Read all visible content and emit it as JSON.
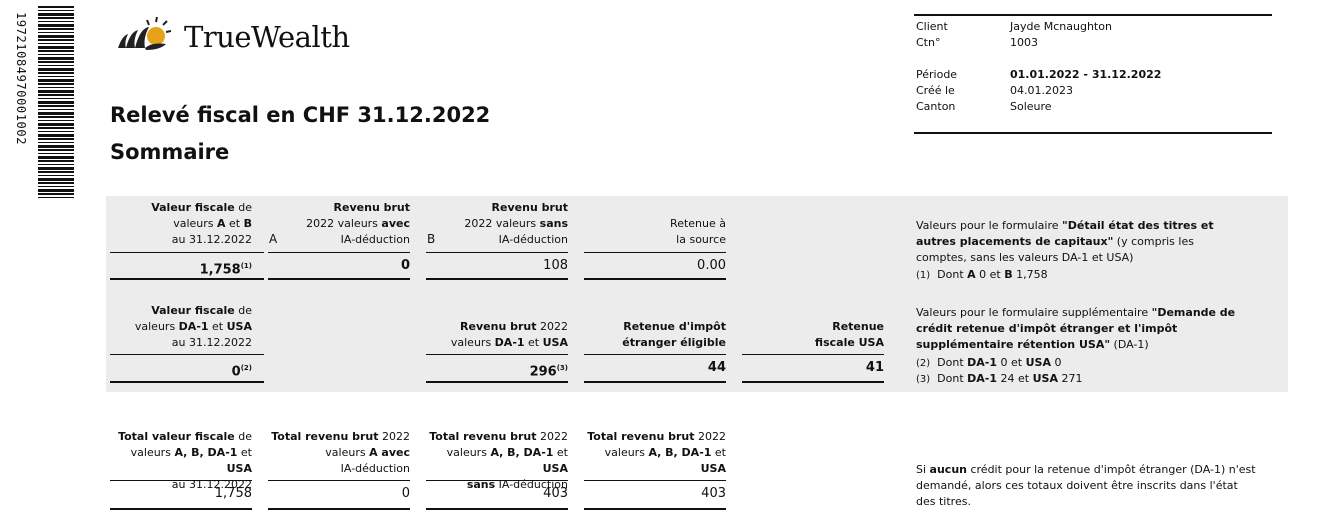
{
  "barcode": {
    "number": "19721084970001002"
  },
  "brand": {
    "name": "TrueWealth"
  },
  "doc": {
    "title": "Relevé fiscal en CHF 31.12.2022",
    "subtitle": "Sommaire"
  },
  "info": {
    "client_label": "Client",
    "client_value": "Jayde Mcnaughton",
    "ctn_label": "Ctn°",
    "ctn_value": "1003",
    "periode_label": "Période",
    "periode_value": "01.01.2022 - 31.12.2022",
    "cree_label": "Créé le",
    "cree_value": "04.01.2023",
    "canton_label": "Canton",
    "canton_value": "Soleure"
  },
  "row1": {
    "h1a": "Valeur fiscale",
    "h1b": " de",
    "h1c": "valeurs ",
    "h1d": "A",
    "h1e": " et ",
    "h1f": "B",
    "h1g": "au 31.12.2022",
    "letter_a": "A",
    "h2a": "Revenu brut",
    "h2b": "2022 valeurs ",
    "h2c": "avec",
    "h2d": "IA-déduction",
    "letter_b": "B",
    "h3a": "Revenu brut",
    "h3b": "2022 valeurs ",
    "h3c": "sans",
    "h3d": "IA-déduction",
    "h4a": "Retenue à",
    "h4b": "la source",
    "v1": "1,758",
    "v1_sup": "(1)",
    "v2": "0",
    "v3": "108",
    "v4": "0.00",
    "note_a": "Valeurs pour le formulaire ",
    "note_b": "\"Détail état des titres et autres placements de capitaux\"",
    "note_c": " (y compris les comptes, sans les valeurs DA-1 et USA)",
    "fn1_mark": "(1)",
    "fn1_a": "Dont ",
    "fn1_b": "A",
    "fn1_c": " 0 et ",
    "fn1_d": "B",
    "fn1_e": " 1,758"
  },
  "row2": {
    "h1a": "Valeur fiscale",
    "h1b": " de",
    "h1c": "valeurs ",
    "h1d": "DA-1",
    "h1e": " et ",
    "h1f": "USA",
    "h1g": "au 31.12.2022",
    "h3a": "Revenu brut",
    "h3b": " 2022",
    "h3c": "valeurs ",
    "h3d": "DA-1",
    "h3e": " et ",
    "h3f": "USA",
    "h4a": "Retenue d'impôt",
    "h4b": "étranger éligible",
    "h5a": "Retenue",
    "h5b": "fiscale USA",
    "v1": "0",
    "v1_sup": "(2)",
    "v3": "296",
    "v3_sup": "(3)",
    "v4": "44",
    "v5": "41",
    "note_a": "Valeurs pour le formulaire supplémentaire ",
    "note_b": "\"Demande de crédit retenue d'impôt étranger et l'impôt supplémentaire rétention USA\"",
    "note_c": " (DA-1)",
    "fn2_mark": "(2)",
    "fn2_a": "Dont ",
    "fn2_b": "DA-1",
    "fn2_c": " 0 et ",
    "fn2_d": "USA",
    "fn2_e": " 0",
    "fn3_mark": "(3)",
    "fn3_a": "Dont ",
    "fn3_b": "DA-1",
    "fn3_c": " 24 et ",
    "fn3_d": "USA",
    "fn3_e": " 271"
  },
  "row3": {
    "h1a": "Total valeur fiscale",
    "h1b": " de",
    "h1c": "valeurs ",
    "h1d": "A, B, DA-1",
    "h1e": " et ",
    "h1f": "USA",
    "h1g": "au 31.12.2022",
    "h2a": "Total revenu brut",
    "h2b": " 2022",
    "h2c": "valeurs ",
    "h2d": "A avec",
    "h2e": "IA-déduction",
    "h3a": "Total revenu brut",
    "h3b": " 2022",
    "h3c": "valeurs ",
    "h3d": "A, B, DA-1",
    "h3e": " et ",
    "h3f": "USA",
    "h3g": "sans",
    "h3h": " IA-déduction",
    "h4a": "Total revenu brut",
    "h4b": " 2022",
    "h4c": "valeurs ",
    "h4d": "A, B, DA-1",
    "h4e": " et ",
    "h4f": "USA",
    "v1": "1,758",
    "v2": "0",
    "v3": "403",
    "v4": "403",
    "note_a": "Si ",
    "note_b": "aucun",
    "note_c": " crédit pour la retenue d'impôt étranger (DA-1) n'est demandé, alors ces totaux doivent être inscrits dans l'état des titres."
  }
}
